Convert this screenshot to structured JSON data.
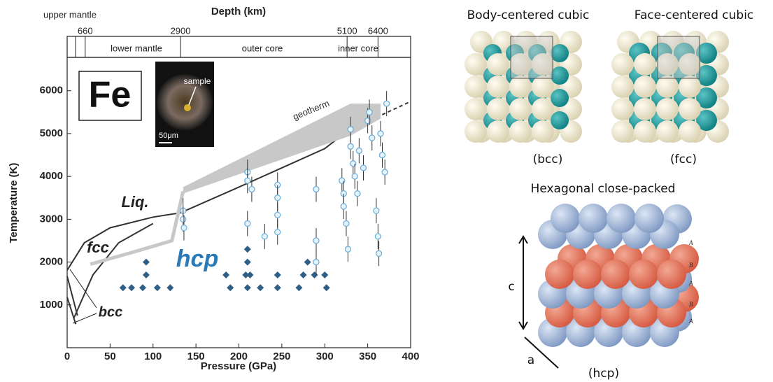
{
  "chart_data": {
    "type": "scatter",
    "x_label": "Pressure (GPa)",
    "y_label": "Temperature (K)",
    "top_label": "Depth (km)",
    "xlim": [
      0,
      400
    ],
    "ylim": [
      0,
      6780
    ],
    "xticks": [
      0,
      50,
      100,
      150,
      200,
      250,
      300,
      350,
      400
    ],
    "yticks": [
      1000,
      2000,
      3000,
      4000,
      5000,
      6000
    ],
    "depth_ticks": [
      {
        "value": 21,
        "label": "660"
      },
      {
        "value": 132,
        "label": "2900"
      },
      {
        "value": 326,
        "label": "5100"
      },
      {
        "value": 362,
        "label": "6400"
      }
    ],
    "depth_regions": [
      "upper mantle",
      "lower mantle",
      "outer core",
      "inner core"
    ],
    "annotations": {
      "element": "Fe",
      "liquid": "Liq.",
      "fcc": "fcc",
      "hcp": "hcp",
      "bcc": "bcc",
      "geotherm": "geotherm",
      "sample": "sample",
      "scale": "50μm"
    },
    "series": [
      {
        "type": "line",
        "color": "#333333",
        "x": [
          0,
          20,
          50,
          100,
          132,
          200,
          300,
          327
        ],
        "values": [
          1810,
          2450,
          2800,
          3050,
          3150,
          3750,
          4650,
          5070
        ]
      },
      {
        "type": "line",
        "color": "#333333",
        "dash": true,
        "x": [
          327,
          400
        ],
        "values": [
          5070,
          5750
        ]
      },
      {
        "type": "line",
        "color": "#333333",
        "x": [
          8,
          30,
          60,
          100
        ],
        "values": [
          700,
          1700,
          2450,
          2900
        ]
      },
      {
        "type": "line",
        "color": "#333333",
        "x": [
          0,
          12
        ],
        "values": [
          1670,
          750
        ]
      },
      {
        "type": "line",
        "color": "#333333",
        "x": [
          0,
          10
        ],
        "values": [
          1180,
          550
        ]
      },
      {
        "type": "line",
        "color": "#c8c8c8",
        "wide": true,
        "x": [
          27,
          80,
          122,
          135
        ],
        "values": [
          1950,
          2250,
          2500,
          3650
        ]
      },
      {
        "type": "band",
        "color": "#c8c8c8",
        "x": [
          135,
          330,
          365
        ],
        "upper": [
          3750,
          5700,
          5700
        ],
        "lower": [
          3600,
          4950,
          5350
        ]
      },
      {
        "type": "scatter",
        "marker": "diamond",
        "color": "#2f5f86",
        "x": [
          65,
          75,
          88,
          92,
          92,
          105,
          120,
          185,
          190,
          208,
          210,
          210,
          210,
          213,
          225,
          245,
          245,
          270,
          275,
          280,
          288,
          300,
          302
        ],
        "values": [
          1400,
          1400,
          1400,
          1700,
          2000,
          1400,
          1400,
          1700,
          1400,
          1700,
          1400,
          2000,
          2300,
          1700,
          1400,
          1700,
          1400,
          1400,
          1700,
          2000,
          1700,
          1700,
          1400
        ]
      },
      {
        "type": "scatter",
        "marker": "open",
        "color": "#6fb0d8",
        "x": [
          135,
          135,
          136,
          210,
          210,
          210,
          215,
          230,
          245,
          245,
          245,
          245,
          290,
          290,
          290,
          320,
          322,
          322,
          325,
          327,
          330,
          330,
          333,
          335,
          338,
          340,
          345,
          350,
          352,
          355,
          360,
          362,
          363,
          365,
          367,
          370,
          372
        ],
        "values": [
          3200,
          3000,
          2800,
          4100,
          3900,
          2900,
          3700,
          2600,
          3800,
          3500,
          3100,
          2700,
          3700,
          2500,
          2000,
          3900,
          3600,
          3300,
          2900,
          2300,
          5100,
          4700,
          4300,
          4000,
          3600,
          4600,
          4200,
          5300,
          5500,
          4900,
          3200,
          2600,
          2200,
          5000,
          4500,
          4100,
          5700
        ]
      }
    ]
  },
  "structures": {
    "bcc_title": "Body-centered cubic",
    "fcc_title": "Face-centered cubic",
    "bcc_label": "(bcc)",
    "fcc_label": "(fcc)",
    "hcp_title": "Hexagonal close-packed",
    "hcp_label": "(hcp)",
    "c": "c",
    "a": "a",
    "layers": [
      "A",
      "B",
      "A",
      "B",
      "A"
    ]
  }
}
